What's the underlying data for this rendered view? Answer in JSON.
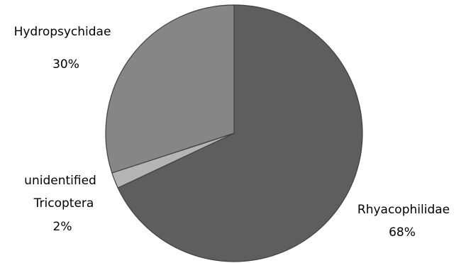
{
  "chart_data": {
    "type": "pie",
    "title": "",
    "slices": [
      {
        "label": "Rhyacophilidae",
        "value": 68,
        "value_label": "68%",
        "color": "#5e5e5e"
      },
      {
        "label": "unidentified Tricoptera",
        "label_lines": [
          "unidentified",
          "Tricoptera"
        ],
        "value": 2,
        "value_label": "2%",
        "color": "#b5b5b5"
      },
      {
        "label": "Hydropsychidae",
        "value": 30,
        "value_label": "30%",
        "color": "#868686"
      }
    ],
    "start": "12 o'clock",
    "direction": "clockwise",
    "legend": "none"
  }
}
